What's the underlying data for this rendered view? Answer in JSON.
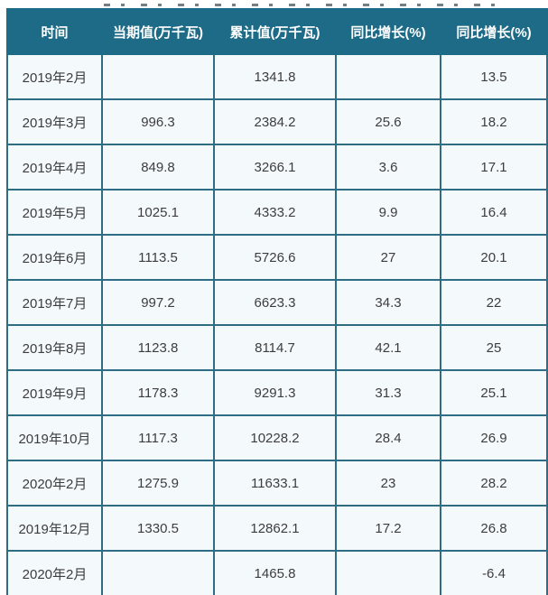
{
  "chart_data": {
    "type": "table",
    "title": "",
    "columns": [
      "时间",
      "当期值(万千瓦)",
      "累计值(万千瓦)",
      "同比增长(%)",
      "同比增长(%)"
    ],
    "rows": [
      [
        "2019年2月",
        "",
        "1341.8",
        "",
        "13.5"
      ],
      [
        "2019年3月",
        "996.3",
        "2384.2",
        "25.6",
        "18.2"
      ],
      [
        "2019年4月",
        "849.8",
        "3266.1",
        "3.6",
        "17.1"
      ],
      [
        "2019年5月",
        "1025.1",
        "4333.2",
        "9.9",
        "16.4"
      ],
      [
        "2019年6月",
        "1113.5",
        "5726.6",
        "27",
        "20.1"
      ],
      [
        "2019年7月",
        "997.2",
        "6623.3",
        "34.3",
        "22"
      ],
      [
        "2019年8月",
        "1123.8",
        "8114.7",
        "42.1",
        "25"
      ],
      [
        "2019年9月",
        "1178.3",
        "9291.3",
        "31.3",
        "25.1"
      ],
      [
        "2019年10月",
        "1117.3",
        "10228.2",
        "28.4",
        "26.9"
      ],
      [
        "2020年2月",
        "1275.9",
        "11633.1",
        "23",
        "28.2"
      ],
      [
        "2019年12月",
        "1330.5",
        "12862.1",
        "17.2",
        "26.8"
      ],
      [
        "2020年2月",
        "",
        "1465.8",
        "",
        "-6.4"
      ]
    ]
  },
  "colors": {
    "header_bg": "#1e6b87",
    "header_text": "#ffffff",
    "cell_bg": "#f4f9fc",
    "cell_text": "#3d3d3d",
    "border": "#2f6d85"
  }
}
